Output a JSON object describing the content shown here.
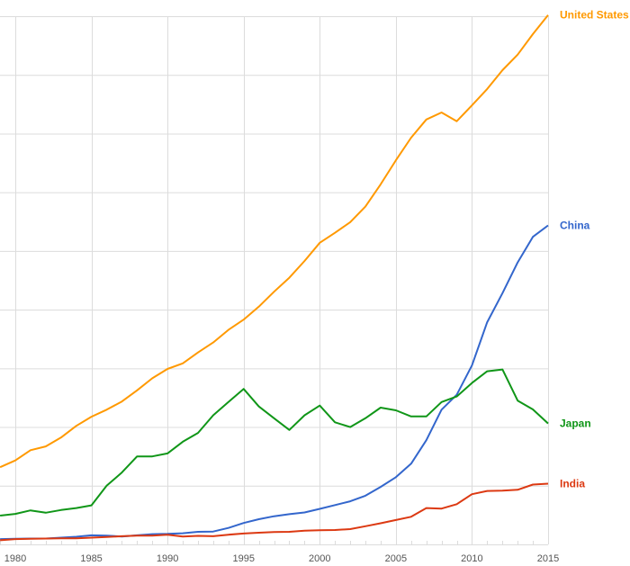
{
  "chart_data": {
    "type": "line",
    "title": "",
    "xlabel": "",
    "ylabel": "",
    "xlim": [
      1979,
      2015
    ],
    "ylim": [
      0,
      18
    ],
    "ygrid_step": 2,
    "grid": true,
    "legend": "right (inline labels at line ends)",
    "x_ticks": [
      "1980",
      "1985",
      "1990",
      "1995",
      "2000",
      "2005",
      "2010",
      "2015"
    ],
    "x": [
      1979,
      1980,
      1981,
      1982,
      1983,
      1984,
      1985,
      1986,
      1987,
      1988,
      1989,
      1990,
      1991,
      1992,
      1993,
      1994,
      1995,
      1996,
      1997,
      1998,
      1999,
      2000,
      2001,
      2002,
      2003,
      2004,
      2005,
      2006,
      2007,
      2008,
      2009,
      2010,
      2011,
      2012,
      2013,
      2014,
      2015
    ],
    "series": [
      {
        "name": "United States",
        "color": "#ff9900",
        "values": [
          2.63,
          2.86,
          3.21,
          3.34,
          3.64,
          4.04,
          4.35,
          4.59,
          4.87,
          5.25,
          5.66,
          5.98,
          6.17,
          6.54,
          6.88,
          7.31,
          7.66,
          8.1,
          8.61,
          9.09,
          9.66,
          10.28,
          10.62,
          10.98,
          11.51,
          12.27,
          13.09,
          13.86,
          14.48,
          14.72,
          14.42,
          14.96,
          15.52,
          16.16,
          16.69,
          17.39,
          18.04
        ]
      },
      {
        "name": "China",
        "color": "#3366cc",
        "values": [
          0.18,
          0.19,
          0.2,
          0.2,
          0.23,
          0.26,
          0.31,
          0.3,
          0.27,
          0.31,
          0.35,
          0.36,
          0.38,
          0.43,
          0.44,
          0.56,
          0.73,
          0.86,
          0.96,
          1.03,
          1.09,
          1.21,
          1.34,
          1.47,
          1.66,
          1.96,
          2.29,
          2.75,
          3.55,
          4.59,
          5.1,
          6.1,
          7.57,
          8.56,
          9.61,
          10.48,
          10.87
        ]
      },
      {
        "name": "Japan",
        "color": "#109618",
        "values": [
          0.98,
          1.04,
          1.16,
          1.08,
          1.17,
          1.24,
          1.33,
          2.0,
          2.45,
          3.0,
          3.0,
          3.1,
          3.5,
          3.8,
          4.4,
          4.85,
          5.3,
          4.7,
          4.3,
          3.9,
          4.4,
          4.73,
          4.16,
          4.0,
          4.3,
          4.66,
          4.57,
          4.36,
          4.36,
          4.85,
          5.04,
          5.5,
          5.9,
          5.96,
          4.9,
          4.6,
          4.12
        ]
      },
      {
        "name": "India",
        "color": "#dc3912",
        "values": [
          0.14,
          0.18,
          0.19,
          0.2,
          0.21,
          0.21,
          0.23,
          0.25,
          0.28,
          0.3,
          0.3,
          0.33,
          0.27,
          0.29,
          0.28,
          0.33,
          0.37,
          0.4,
          0.42,
          0.43,
          0.47,
          0.48,
          0.49,
          0.52,
          0.62,
          0.72,
          0.83,
          0.94,
          1.24,
          1.22,
          1.37,
          1.71,
          1.82,
          1.83,
          1.86,
          2.04,
          2.07
        ]
      }
    ]
  }
}
